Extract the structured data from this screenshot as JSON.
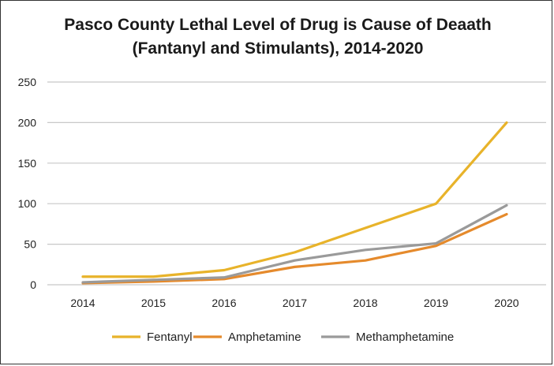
{
  "chart_data": {
    "type": "line",
    "title_line1": "Pasco County Lethal Level of Drug is Cause of Deaath",
    "title_line2": "(Fantanyl and Stimulants), 2014-2020",
    "xlabel": "",
    "ylabel": "",
    "x": [
      "2014",
      "2015",
      "2016",
      "2017",
      "2018",
      "2019",
      "2020"
    ],
    "ylim": [
      0,
      250
    ],
    "yticks": [
      0,
      50,
      100,
      150,
      200,
      250
    ],
    "grid": true,
    "legend": "bottom",
    "series": [
      {
        "name": "Fentanyl",
        "color": "#e8b32a",
        "values": [
          10,
          10,
          18,
          40,
          70,
          100,
          200
        ]
      },
      {
        "name": "Amphetamine",
        "color": "#e58a2c",
        "values": [
          2,
          4,
          7,
          22,
          30,
          48,
          87
        ]
      },
      {
        "name": "Methamphetamine",
        "color": "#9a9a9a",
        "values": [
          3,
          6,
          9,
          30,
          43,
          51,
          98
        ]
      }
    ]
  }
}
